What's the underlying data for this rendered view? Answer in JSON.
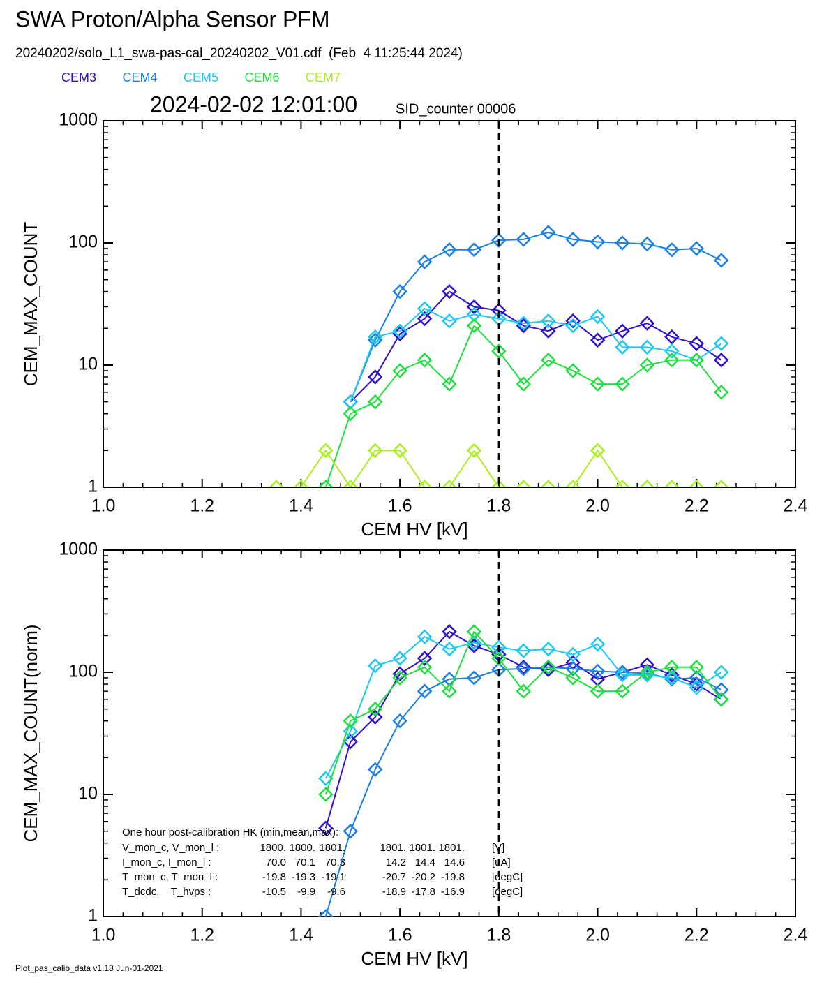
{
  "title": "SWA Proton/Alpha Sensor PFM",
  "subtitle": "20240202/solo_L1_swa-pas-cal_20240202_V01.cdf  (Feb  4 11:25:44 2024)",
  "timestamp": "2024-02-02 12:01:00",
  "counter": "SID_counter 00006",
  "footer": "Plot_pas_calib_data v1.18 Jun-01-2021",
  "chart_data": [
    {
      "type": "line",
      "x_label": "CEM HV [kV]",
      "y_label": "CEM_MAX_COUNT",
      "x": [
        1.35,
        1.4,
        1.45,
        1.5,
        1.55,
        1.6,
        1.65,
        1.7,
        1.75,
        1.8,
        1.85,
        1.9,
        1.95,
        2.0,
        2.05,
        2.1,
        2.15,
        2.2,
        2.25
      ],
      "series": [
        {
          "name": "CEM3",
          "color": "#3010d0",
          "values": [
            null,
            null,
            null,
            5,
            8,
            18,
            24,
            40,
            30,
            28,
            21,
            19,
            23,
            16,
            19,
            22,
            17,
            15,
            11
          ]
        },
        {
          "name": "CEM4",
          "color": "#1a7fe6",
          "values": [
            null,
            null,
            null,
            5,
            16,
            40,
            70,
            88,
            88,
            105,
            107,
            122,
            107,
            102,
            100,
            98,
            88,
            90,
            72
          ]
        },
        {
          "name": "CEM5",
          "color": "#1ec8f0",
          "values": [
            null,
            null,
            null,
            5,
            17,
            19,
            29,
            23,
            26,
            24,
            22,
            23,
            21,
            25,
            14,
            14,
            13,
            11,
            15
          ]
        },
        {
          "name": "CEM6",
          "color": "#20e040",
          "values": [
            null,
            null,
            1,
            4,
            5,
            9,
            11,
            7,
            21,
            13,
            7,
            11,
            9,
            7,
            7,
            10,
            11,
            11,
            6
          ]
        },
        {
          "name": "CEM7",
          "color": "#a8f020",
          "values": [
            1,
            1,
            2,
            1,
            2,
            2,
            1,
            1,
            2,
            1,
            1,
            1,
            1,
            2,
            1,
            1,
            1,
            1,
            1
          ]
        }
      ],
      "xlim": [
        1.0,
        2.4
      ],
      "xticks": [
        {
          "value": 1,
          "label": "1.0"
        },
        1.2,
        1.4,
        1.6,
        1.8,
        {
          "value": 2,
          "label": "2.0"
        },
        2.2,
        2.4
      ],
      "ylim": [
        1,
        1000
      ],
      "yticks": [
        1,
        10,
        100,
        1000
      ],
      "log_y": true,
      "vline": 1.8
    },
    {
      "type": "line",
      "x_label": "CEM HV [kV]",
      "y_label": "CEM_MAX_COUNT(norm)",
      "x": [
        1.35,
        1.4,
        1.45,
        1.5,
        1.55,
        1.6,
        1.65,
        1.7,
        1.75,
        1.8,
        1.85,
        1.9,
        1.95,
        2.0,
        2.05,
        2.1,
        2.15,
        2.2,
        2.25
      ],
      "series": [
        {
          "color": "#3010d0",
          "values": [
            null,
            null,
            5.3,
            27,
            43,
            97,
            130,
            215,
            165,
            140,
            110,
            105,
            120,
            88,
            100,
            115,
            95,
            80,
            60
          ]
        },
        {
          "color": "#1a7fe6",
          "values": [
            null,
            null,
            1,
            5,
            16,
            40,
            70,
            88,
            90,
            105,
            107,
            110,
            107,
            102,
            100,
            98,
            88,
            90,
            72
          ]
        },
        {
          "color": "#1ec8f0",
          "values": [
            null,
            null,
            13.5,
            33,
            113,
            130,
            195,
            155,
            175,
            160,
            150,
            155,
            140,
            170,
            95,
            95,
            90,
            75,
            100
          ]
        },
        {
          "color": "#20e040",
          "values": [
            null,
            null,
            10,
            40,
            50,
            90,
            110,
            70,
            215,
            130,
            70,
            110,
            90,
            70,
            70,
            100,
            110,
            110,
            60
          ]
        }
      ],
      "xlim": [
        1.0,
        2.4
      ],
      "xticks": [
        {
          "value": 1,
          "label": "1.0"
        },
        1.2,
        1.4,
        1.6,
        1.8,
        {
          "value": 2,
          "label": "2.0"
        },
        2.2,
        2.4
      ],
      "ylim": [
        1,
        1000
      ],
      "yticks": [
        1,
        10,
        100,
        1000
      ],
      "log_y": true,
      "vline": 1.8,
      "annotation_title": "One hour post-calibration HK (min,mean,max):",
      "annotation_rows": [
        [
          "V_mon_c, V_mon_l :",
          "1800.",
          "1800.",
          "1801.",
          "1801.",
          "1801.",
          "1801.",
          "[V]"
        ],
        [
          "I_mon_c, I_mon_l :",
          "70.0",
          "70.1",
          "70.3",
          "14.2",
          "14.4",
          "14.6",
          "[uA]"
        ],
        [
          "T_mon_c, T_mon_l :",
          "-19.8",
          "-19.3",
          "-19.1",
          "-20.7",
          "-20.2",
          "-19.8",
          "[degC]"
        ],
        [
          "T_dcdc,    T_hvps :",
          "-10.5",
          "-9.9",
          "-9.6",
          "-18.9",
          "-17.8",
          "-16.9",
          "[degC]"
        ]
      ]
    }
  ]
}
